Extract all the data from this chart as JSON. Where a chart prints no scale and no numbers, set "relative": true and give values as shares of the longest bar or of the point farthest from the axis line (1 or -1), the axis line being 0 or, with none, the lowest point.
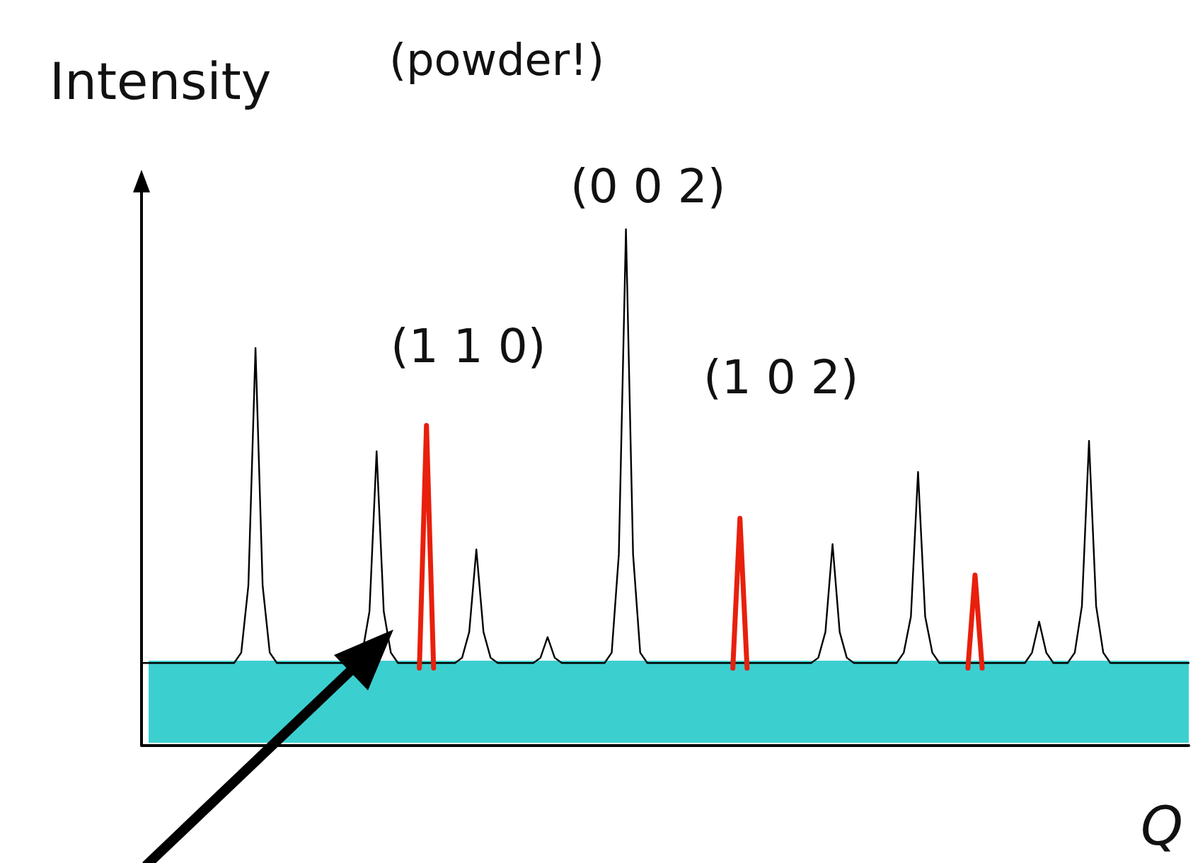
{
  "chart_data": {
    "type": "line",
    "relative": true,
    "xlabel": "Q",
    "ylabel": "Intensity",
    "annotations": [
      "(powder!)",
      "(0 0 2)",
      "(1 1 0)",
      "(1 0 2)"
    ],
    "categories": [
      null,
      null,
      null,
      null,
      null,
      null,
      null,
      null,
      null,
      null,
      null,
      null,
      null,
      null,
      null,
      null,
      null,
      null,
      null,
      null,
      null,
      null,
      null,
      null,
      null,
      null,
      null,
      null,
      null,
      null,
      null,
      null,
      null,
      null,
      null,
      null,
      null,
      null,
      null,
      null,
      null,
      null,
      null,
      null,
      null,
      null,
      null,
      null,
      null,
      null,
      null,
      null,
      null,
      null,
      null,
      null,
      null,
      null,
      null,
      null,
      null,
      null,
      null,
      null,
      null,
      null,
      null,
      null,
      null,
      null,
      null,
      null,
      null,
      null,
      null,
      null,
      null,
      null,
      null,
      null,
      null,
      null,
      null,
      null,
      null,
      null,
      null,
      null,
      null,
      null,
      null,
      null,
      null,
      null,
      null,
      null,
      null,
      null,
      null,
      null,
      null,
      null,
      null,
      null,
      null,
      null,
      null,
      null,
      null,
      null,
      null,
      null,
      null,
      null,
      null,
      null,
      null,
      null,
      null,
      null,
      null,
      null,
      null,
      null,
      null,
      null,
      null,
      null,
      null,
      null,
      null,
      null,
      null,
      null,
      null,
      null,
      null,
      null,
      null,
      null,
      null,
      null,
      null,
      null,
      null,
      null,
      null,
      null
    ],
    "series": [
      {
        "color": "#000000",
        "values": [
          0.16,
          0.16,
          0.16,
          0.16,
          0.16,
          0.16,
          0.16,
          0.16,
          0.16,
          0.16,
          0.16,
          0.16,
          0.16,
          0.16,
          0.18,
          0.31,
          0.77,
          0.31,
          0.18,
          0.16,
          0.16,
          0.16,
          0.16,
          0.16,
          0.16,
          0.16,
          0.16,
          0.16,
          0.16,
          0.16,
          0.16,
          0.18,
          0.26,
          0.57,
          0.26,
          0.18,
          0.16,
          0.16,
          0.16,
          0.16,
          0.16,
          0.16,
          0.16,
          0.16,
          0.16,
          0.17,
          0.22,
          0.38,
          0.22,
          0.17,
          0.16,
          0.16,
          0.16,
          0.16,
          0.16,
          0.16,
          0.17,
          0.21,
          0.17,
          0.16,
          0.16,
          0.16,
          0.16,
          0.16,
          0.16,
          0.16,
          0.18,
          0.37,
          1,
          0.37,
          0.18,
          0.16,
          0.16,
          0.16,
          0.16,
          0.16,
          0.16,
          0.16,
          0.16,
          0.16,
          0.16,
          0.16,
          0.16,
          0.16,
          0.16,
          0.16,
          0.16,
          0.16,
          0.16,
          0.16,
          0.16,
          0.16,
          0.16,
          0.16,
          0.16,
          0.17,
          0.22,
          0.39,
          0.22,
          0.17,
          0.16,
          0.16,
          0.16,
          0.16,
          0.16,
          0.16,
          0.16,
          0.18,
          0.25,
          0.53,
          0.25,
          0.18,
          0.16,
          0.16,
          0.16,
          0.16,
          0.16,
          0.16,
          0.16,
          0.16,
          0.16,
          0.16,
          0.16,
          0.16,
          0.16,
          0.18,
          0.24,
          0.18,
          0.16,
          0.16,
          0.16,
          0.18,
          0.27,
          0.59,
          0.27,
          0.18,
          0.16,
          0.16,
          0.16,
          0.16,
          0.16,
          0.16,
          0.16,
          0.16,
          0.16,
          0.16,
          0.16,
          0.16
        ]
      },
      {
        "color": "#e8200c",
        "values": [
          null,
          null,
          null,
          null,
          null,
          null,
          null,
          null,
          null,
          null,
          null,
          null,
          null,
          null,
          null,
          null,
          null,
          null,
          null,
          null,
          null,
          null,
          null,
          null,
          null,
          null,
          null,
          null,
          null,
          null,
          null,
          null,
          null,
          null,
          null,
          null,
          null,
          null,
          null,
          0.15,
          0.62,
          0.15,
          null,
          null,
          null,
          null,
          null,
          null,
          null,
          null,
          null,
          null,
          null,
          null,
          null,
          null,
          null,
          null,
          null,
          null,
          null,
          null,
          null,
          null,
          null,
          null,
          null,
          null,
          null,
          null,
          null,
          null,
          null,
          null,
          null,
          null,
          null,
          null,
          null,
          null,
          null,
          null,
          null,
          0.15,
          0.44,
          0.15,
          null,
          null,
          null,
          null,
          null,
          null,
          null,
          null,
          null,
          null,
          null,
          null,
          null,
          null,
          null,
          null,
          null,
          null,
          null,
          null,
          null,
          null,
          null,
          null,
          null,
          null,
          null,
          null,
          null,
          null,
          0.15,
          0.33,
          0.15,
          null,
          null,
          null,
          null,
          null,
          null,
          null,
          null,
          null,
          null,
          null,
          null,
          null,
          null,
          null,
          null,
          null,
          null,
          null,
          null,
          null,
          null,
          null,
          null,
          null,
          null,
          null,
          null,
          null
        ]
      }
    ]
  }
}
